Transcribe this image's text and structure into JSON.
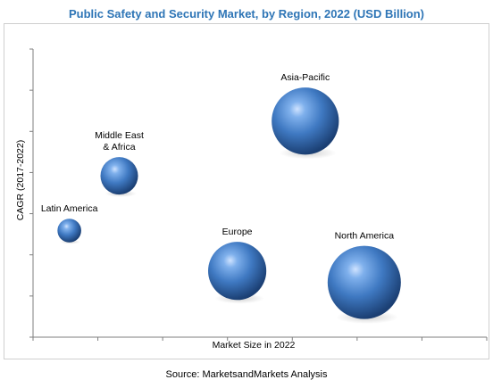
{
  "chart_data": {
    "type": "bubble",
    "title": "Public Safety and Security Market, by Region, 2022 (USD Billion)",
    "xlabel": "Market Size in 2022",
    "ylabel": "CAGR (2017-2022)",
    "source": "Source: MarketsandMarkets Analysis",
    "xlim": [
      0,
      100
    ],
    "ylim": [
      0,
      100
    ],
    "grid": false,
    "legend": "none",
    "bubble_color": "#3f79c2",
    "points": [
      {
        "label": "Latin America",
        "x": 8,
        "y": 37,
        "size": 2
      },
      {
        "label": "Middle East & Africa",
        "x": 19,
        "y": 56,
        "size": 5
      },
      {
        "label": "Asia-Pacific",
        "x": 60,
        "y": 75,
        "size": 16
      },
      {
        "label": "Europe",
        "x": 45,
        "y": 23,
        "size": 12
      },
      {
        "label": "North America",
        "x": 73,
        "y": 19,
        "size": 19
      }
    ]
  }
}
